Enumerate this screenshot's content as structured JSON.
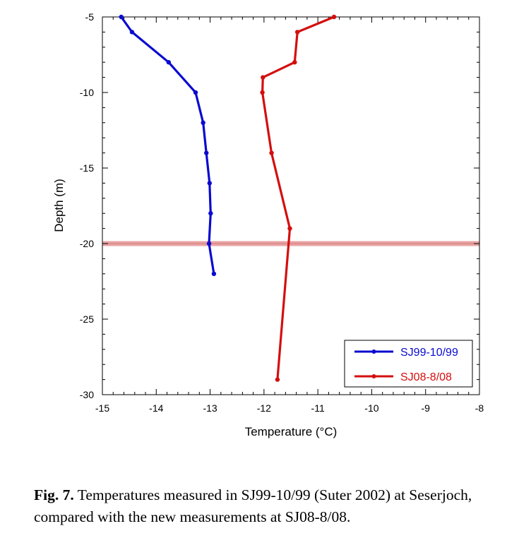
{
  "chart_data": {
    "type": "line",
    "title": "",
    "xlabel": "Temperature (°C)",
    "ylabel": "Depth (m)",
    "xlim": [
      -15,
      -8
    ],
    "ylim": [
      -30,
      -5
    ],
    "x_ticks": [
      -15,
      -14,
      -13,
      -12,
      -11,
      -10,
      -9,
      -8
    ],
    "y_ticks": [
      -5,
      -10,
      -15,
      -20,
      -25,
      -30
    ],
    "grid": false,
    "legend_position": "bottom-right",
    "annotations": [
      {
        "type": "horizontal-band",
        "y": -20,
        "color": "#e7a3a3"
      }
    ],
    "series": [
      {
        "name": "SJ99-10/99",
        "color": "#0a0ad0",
        "points": [
          {
            "x": -14.65,
            "y": -5
          },
          {
            "x": -14.45,
            "y": -6
          },
          {
            "x": -13.77,
            "y": -8
          },
          {
            "x": -13.27,
            "y": -10
          },
          {
            "x": -13.13,
            "y": -12
          },
          {
            "x": -13.07,
            "y": -14
          },
          {
            "x": -13.01,
            "y": -16
          },
          {
            "x": -12.99,
            "y": -18
          },
          {
            "x": -13.02,
            "y": -20
          },
          {
            "x": -12.93,
            "y": -22
          }
        ]
      },
      {
        "name": "SJ08-8/08",
        "color": "#d40e0e",
        "points": [
          {
            "x": -10.7,
            "y": -5
          },
          {
            "x": -11.38,
            "y": -6
          },
          {
            "x": -11.43,
            "y": -8
          },
          {
            "x": -12.02,
            "y": -9
          },
          {
            "x": -12.03,
            "y": -10
          },
          {
            "x": -11.86,
            "y": -14
          },
          {
            "x": -11.52,
            "y": -19
          },
          {
            "x": -11.75,
            "y": -29
          }
        ]
      }
    ]
  },
  "caption": {
    "label": "Fig. 7.",
    "text": " Temperatures measured in SJ99-10/99 (Suter 2002) at Seserjoch, compared with the new measurements at SJ08-8/08."
  }
}
